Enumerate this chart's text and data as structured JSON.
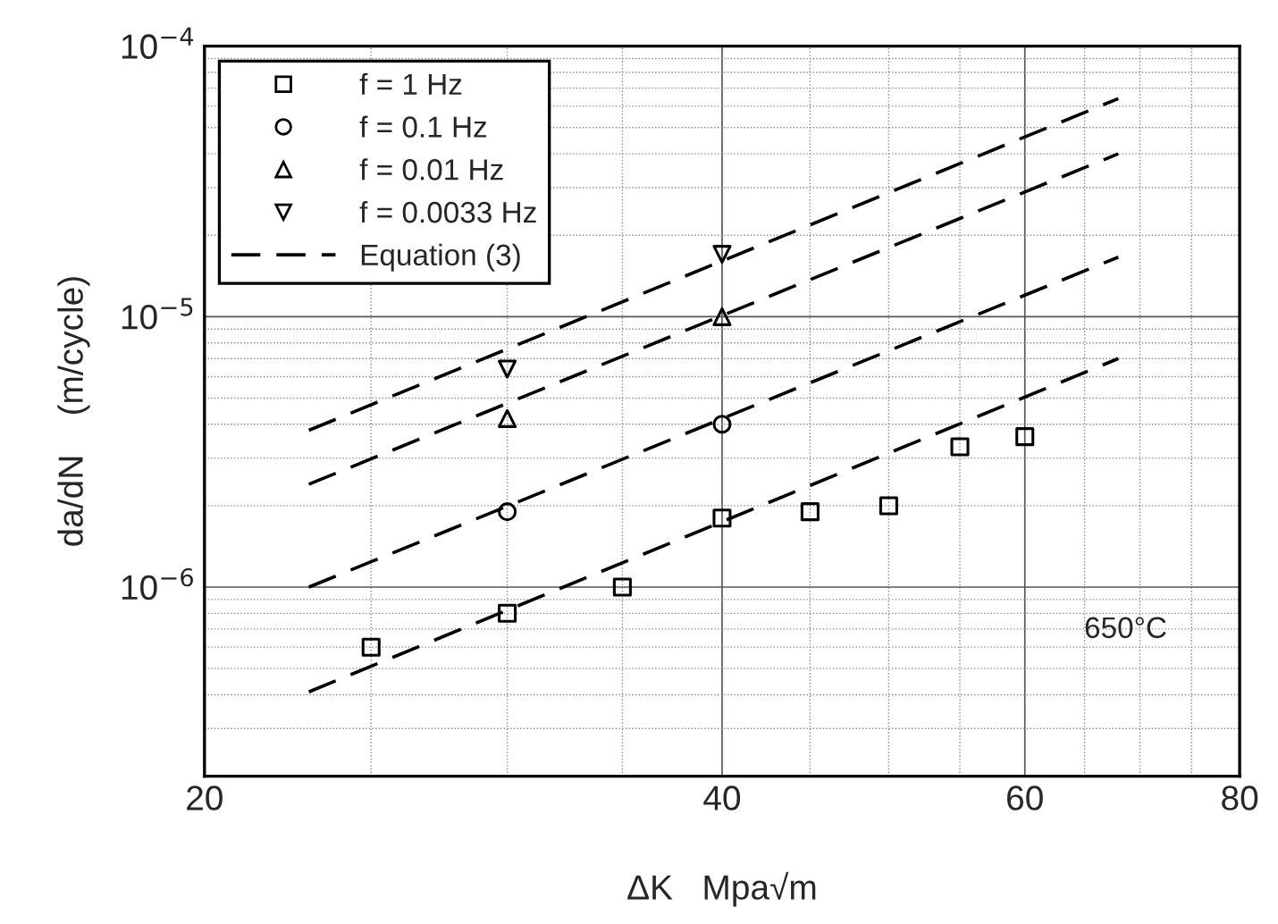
{
  "chart_data": {
    "type": "scatter",
    "xlabel": "ΔK   Mpa√m",
    "ylabel": "da/dN    (m/cycle)",
    "log": "xy",
    "xlim": [
      20,
      80
    ],
    "xticks": [
      20,
      40,
      60,
      80
    ],
    "ylim": [
      2e-07,
      0.0001
    ],
    "yticks": [
      {
        "value": 1e-06,
        "label": "10$^{−6}$"
      },
      {
        "value": 1e-05,
        "label": "10$^{−5}$"
      },
      {
        "value": 0.0001,
        "label": "10$^{−4}$"
      }
    ],
    "grid": true,
    "legend": "top left",
    "annotations": [
      "650°C"
    ],
    "series": [
      {
        "name": "f = 1 Hz",
        "marker": "square",
        "color": "#000000",
        "x": [
          25,
          30,
          35,
          40,
          45,
          50,
          55,
          60
        ],
        "values": [
          6e-07,
          8e-07,
          1e-06,
          1.8e-06,
          1.9e-06,
          2e-06,
          3.3e-06,
          3.6e-06
        ]
      },
      {
        "name": "f = 0.1 Hz",
        "marker": "circle",
        "color": "#000000",
        "x": [
          30,
          40
        ],
        "values": [
          1.9e-06,
          4e-06
        ]
      },
      {
        "name": "f = 0.01 Hz",
        "marker": "triangle",
        "color": "#000000",
        "x": [
          30,
          40
        ],
        "values": [
          4.2e-06,
          1e-05
        ]
      },
      {
        "name": "f = 0.0033 Hz",
        "marker": "triangle_down",
        "color": "#000000",
        "x": [
          30,
          40
        ],
        "values": [
          6.4e-06,
          1.7e-05
        ]
      },
      {
        "name": "Equation (3)",
        "type": "line",
        "line_style": "dashed",
        "color": "#000000",
        "x": [
          23,
          68
        ],
        "values": [
          3.8e-06,
          6.4e-05
        ]
      },
      {
        "type": "line",
        "line_style": "dashed",
        "color": "#000000",
        "x": [
          23,
          68
        ],
        "values": [
          2.4e-06,
          4e-05
        ]
      },
      {
        "type": "line",
        "line_style": "dashed",
        "color": "#000000",
        "x": [
          23,
          68
        ],
        "values": [
          1e-06,
          1.66e-05
        ]
      },
      {
        "type": "line",
        "line_style": "dashed",
        "color": "#000000",
        "x": [
          23,
          68
        ],
        "values": [
          4.1e-07,
          7e-06
        ]
      }
    ]
  }
}
